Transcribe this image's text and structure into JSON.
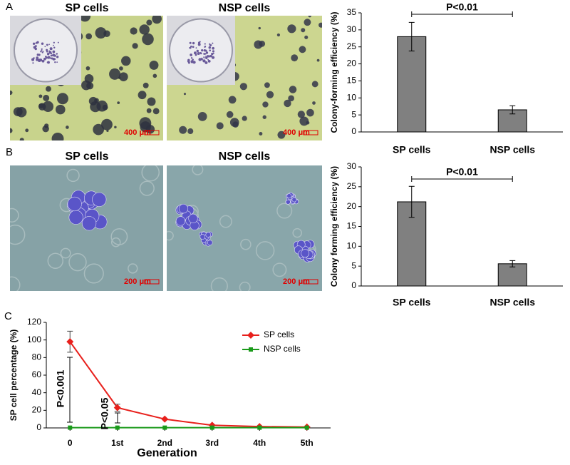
{
  "figure": {
    "panels": [
      {
        "label": "A",
        "images": [
          {
            "title": "SP cells",
            "scale": "400 μm"
          },
          {
            "title": "NSP cells",
            "scale": "400 μm"
          }
        ]
      },
      {
        "label": "B",
        "images": [
          {
            "title": "SP cells",
            "scale": "200 μm"
          },
          {
            "title": "NSP cells",
            "scale": "200 μm"
          }
        ]
      },
      {
        "label": "C"
      }
    ]
  },
  "chart_data": [
    {
      "type": "bar",
      "ylabel": "Colony-forming efficiency (%)",
      "categories": [
        "SP cells",
        "NSP cells"
      ],
      "values": [
        28,
        6.5
      ],
      "errors": [
        4.2,
        1.2
      ],
      "color": "#808080",
      "ylim": [
        0,
        35
      ],
      "yticks": [
        0,
        5,
        10,
        15,
        20,
        25,
        30,
        35
      ],
      "annotation": "P<0.01"
    },
    {
      "type": "bar",
      "ylabel": "Colony forming efficiency (%)",
      "categories": [
        "SP cells",
        "NSP cells"
      ],
      "values": [
        21.2,
        5.6
      ],
      "errors": [
        3.9,
        0.8
      ],
      "color": "#808080",
      "ylim": [
        0,
        30
      ],
      "yticks": [
        0,
        5,
        10,
        15,
        20,
        25,
        30
      ],
      "annotation": "P<0.01"
    },
    {
      "type": "line",
      "xlabel": "Generation",
      "ylabel": "SP cell percentage (%)",
      "categories": [
        "0",
        "1st",
        "2nd",
        "3rd",
        "4th",
        "5th"
      ],
      "series": [
        {
          "name": "SP cells",
          "color": "#e8201c",
          "values": [
            98,
            23,
            10,
            3,
            1.5,
            1
          ],
          "errors": [
            12,
            4,
            null,
            null,
            null,
            null
          ]
        },
        {
          "name": "NSP cells",
          "color": "#1a9a1a",
          "values": [
            0.3,
            0.3,
            0.3,
            0.3,
            0.3,
            0.3
          ]
        }
      ],
      "ylim": [
        0,
        120
      ],
      "yticks": [
        0,
        20,
        40,
        60,
        80,
        100,
        120
      ],
      "legend": "upper right",
      "annotations": [
        "P<0.001",
        "P<0.05"
      ]
    }
  ]
}
